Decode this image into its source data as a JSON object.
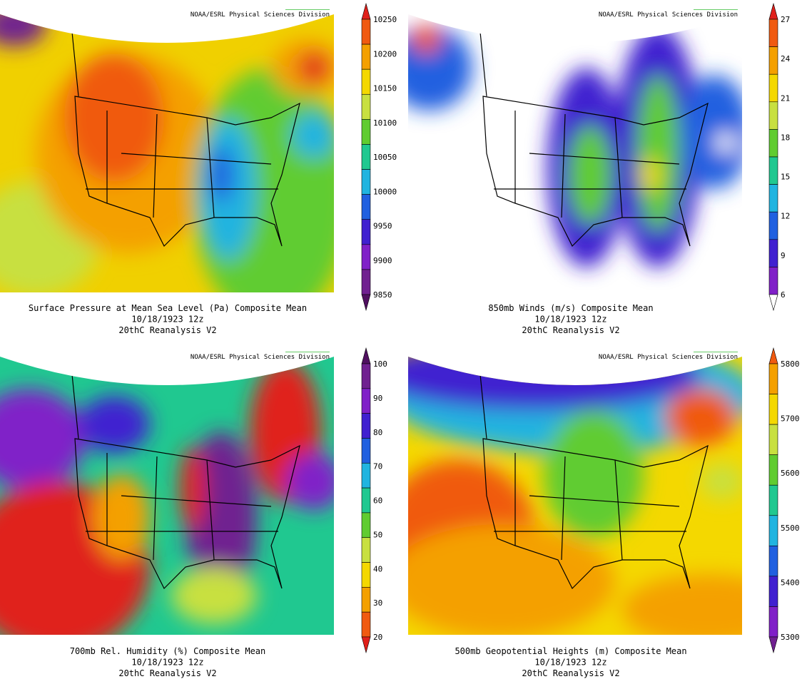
{
  "panels": [
    {
      "credit": "NOAA/ESRL Physical Sciences Division",
      "caption": [
        "Surface Pressure at Mean Sea Level (Pa)   Composite Mean",
        "10/18/1923 12z",
        "20thC Reanalysis V2"
      ],
      "colorbar": {
        "labels": [
          10250,
          10200,
          10150,
          10100,
          10050,
          10000,
          9950,
          9900,
          9850
        ],
        "colors": [
          "#e0201a",
          "#f05a10",
          "#f4a000",
          "#f4d800",
          "#c8e040",
          "#60cc30",
          "#20c890",
          "#20b4e0",
          "#2060e0",
          "#4020d0",
          "#8020c8",
          "#702090",
          "#501060"
        ]
      }
    },
    {
      "credit": "NOAA/ESRL Physical Sciences Division",
      "caption": [
        "850mb Winds (m/s)   Composite Mean",
        "10/18/1923 12z",
        "20thC Reanalysis V2"
      ],
      "colorbar": {
        "labels": [
          27,
          24,
          21,
          18,
          15,
          12,
          9,
          6
        ],
        "colors": [
          "#e0201a",
          "#f05a10",
          "#f4a000",
          "#f4d800",
          "#c8e040",
          "#60cc30",
          "#20c890",
          "#20b4e0",
          "#2060e0",
          "#4020d0",
          "#8020c8",
          "#ffffff"
        ]
      }
    },
    {
      "credit": "NOAA/ESRL Physical Sciences Division",
      "caption": [
        "700mb Rel. Humidity (%)   Composite Mean",
        "10/18/1923 12z",
        "20thC Reanalysis V2"
      ],
      "colorbar": {
        "labels": [
          100,
          90,
          80,
          70,
          60,
          50,
          40,
          30,
          20
        ],
        "colors": [
          "#501060",
          "#702090",
          "#8020c8",
          "#4020d0",
          "#2060e0",
          "#20b4e0",
          "#20c890",
          "#60cc30",
          "#c8e040",
          "#f4d800",
          "#f4a000",
          "#f05a10",
          "#e0201a"
        ]
      }
    },
    {
      "credit": "NOAA/ESRL Physical Sciences Division",
      "caption": [
        "500mb Geopotential Heights (m)   Composite Mean",
        "10/18/1923 12z",
        "20thC Reanalysis V2"
      ],
      "colorbar": {
        "labels": [
          5800,
          5700,
          5600,
          5500,
          5400,
          5300
        ],
        "colors": [
          "#f05a10",
          "#f4a000",
          "#f4d800",
          "#c8e040",
          "#60cc30",
          "#20c890",
          "#20b4e0",
          "#2060e0",
          "#4020d0",
          "#8020c8",
          "#702090"
        ]
      }
    }
  ]
}
